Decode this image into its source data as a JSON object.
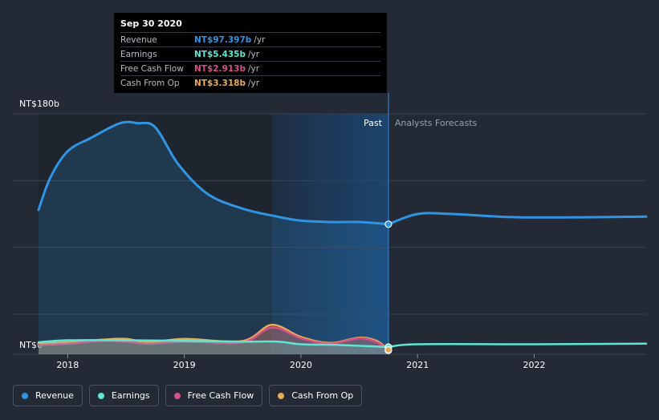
{
  "tooltip": {
    "date": "Sep 30 2020",
    "rows": [
      {
        "label": "Revenue",
        "value": "NT$97.397b",
        "unit": "/yr",
        "color": "#2f95e3"
      },
      {
        "label": "Earnings",
        "value": "NT$5.435b",
        "unit": "/yr",
        "color": "#5ee6d3"
      },
      {
        "label": "Free Cash Flow",
        "value": "NT$2.913b",
        "unit": "/yr",
        "color": "#d6508a"
      },
      {
        "label": "Cash From Op",
        "value": "NT$3.318b",
        "unit": "/yr",
        "color": "#e7ab54"
      }
    ]
  },
  "legend": [
    {
      "label": "Revenue",
      "color": "#2f95e3"
    },
    {
      "label": "Earnings",
      "color": "#5ee6d3"
    },
    {
      "label": "Free Cash Flow",
      "color": "#d6508a"
    },
    {
      "label": "Cash From Op",
      "color": "#e7ab54"
    }
  ],
  "chart_data": {
    "type": "line",
    "y_top_label": "NT$180b",
    "y_bottom_label": "NT$0",
    "ylim": [
      0,
      180
    ],
    "xlim": [
      2017.75,
      2022.96
    ],
    "x_ticks": [
      {
        "value": 2018,
        "label": "2018"
      },
      {
        "value": 2019,
        "label": "2019"
      },
      {
        "value": 2020,
        "label": "2020"
      },
      {
        "value": 2021,
        "label": "2021"
      },
      {
        "value": 2022,
        "label": "2022"
      }
    ],
    "past_label": "Past",
    "forecast_label": "Analysts Forecasts",
    "divider_x": 2020.75,
    "highlight_start_x": 2019.75,
    "grid": true,
    "series": [
      {
        "name": "Revenue",
        "color": "#2f95e3",
        "x": [
          2017.75,
          2017.85,
          2018.0,
          2018.2,
          2018.45,
          2018.6,
          2018.75,
          2018.95,
          2019.2,
          2019.5,
          2019.8,
          2020.0,
          2020.25,
          2020.5,
          2020.75
        ],
        "y": [
          108,
          132,
          152,
          162,
          173,
          173,
          170,
          142,
          120,
          109,
          103,
          100,
          99,
          99,
          97.4
        ],
        "forecast_x": [
          2020.75,
          2021.0,
          2021.3,
          2021.9,
          2022.96
        ],
        "forecast_y": [
          97.4,
          105,
          105,
          102.5,
          103
        ]
      },
      {
        "name": "Earnings",
        "color": "#5ee6d3",
        "x": [
          2017.75,
          2018.0,
          2018.5,
          2019.0,
          2019.5,
          2019.8,
          2020.0,
          2020.3,
          2020.6,
          2020.75
        ],
        "y": [
          9,
          10.5,
          10.5,
          10,
          9.5,
          9.5,
          7.5,
          7,
          6,
          5.4
        ],
        "forecast_x": [
          2020.75,
          2021.0,
          2022.0,
          2022.96
        ],
        "forecast_y": [
          5.4,
          7.5,
          7.5,
          8
        ]
      },
      {
        "name": "Free Cash Flow",
        "color": "#d6508a",
        "x": [
          2017.75,
          2018.0,
          2018.3,
          2018.5,
          2018.7,
          2019.0,
          2019.5,
          2019.75,
          2020.0,
          2020.25,
          2020.5,
          2020.65,
          2020.75
        ],
        "y": [
          7,
          8,
          10,
          9.5,
          8,
          9.5,
          9,
          20,
          12,
          8,
          12,
          9,
          2.9
        ]
      },
      {
        "name": "Cash From Op",
        "color": "#e7ab54",
        "x": [
          2017.75,
          2018.0,
          2018.3,
          2018.5,
          2018.7,
          2019.0,
          2019.5,
          2019.75,
          2020.0,
          2020.25,
          2020.5,
          2020.65,
          2020.75
        ],
        "y": [
          8,
          9,
          11,
          11.5,
          9,
          11.5,
          10,
          22,
          13,
          8.5,
          12.5,
          10,
          3.3
        ]
      }
    ]
  }
}
